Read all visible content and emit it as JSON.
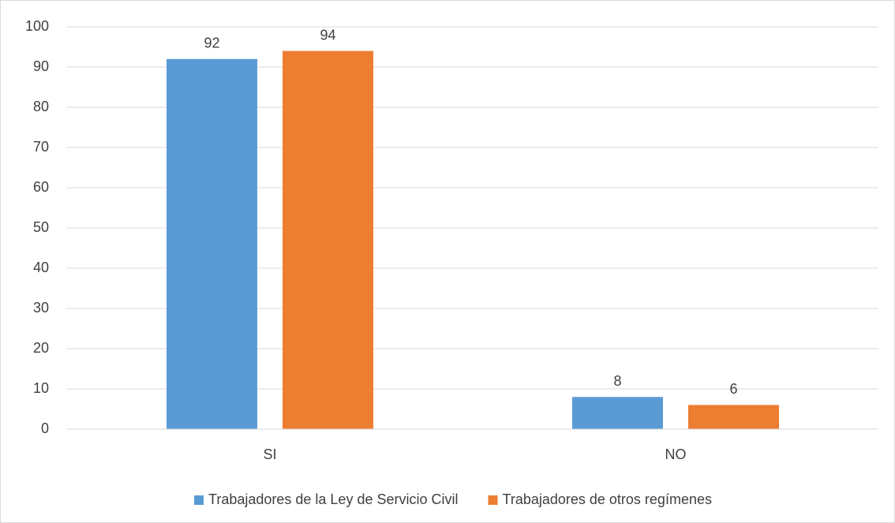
{
  "chart_data": {
    "type": "bar",
    "categories": [
      "SI",
      "NO"
    ],
    "series": [
      {
        "name": "Trabajadores de la Ley de Servicio Civil",
        "color": "#5b9bd5",
        "values": [
          92,
          8
        ]
      },
      {
        "name": "Trabajadores de otros regímenes",
        "color": "#ed7d31",
        "values": [
          94,
          6
        ]
      }
    ],
    "ylim": [
      0,
      100
    ],
    "yticks": [
      0,
      10,
      20,
      30,
      40,
      50,
      60,
      70,
      80,
      90,
      100
    ],
    "grid": true,
    "legend": "bottom",
    "data_labels": true
  }
}
